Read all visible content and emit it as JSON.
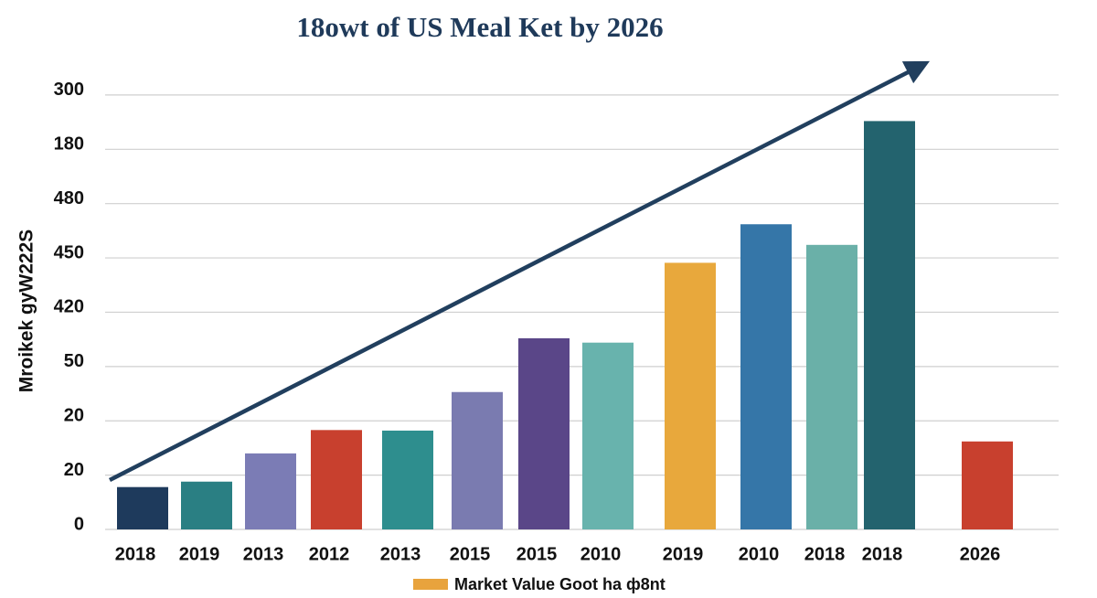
{
  "chart_data": {
    "type": "bar",
    "title": "18owt of US Meal Ket by 2026",
    "y_label": "Mroikek gyW222S",
    "categories": [
      "2018",
      "2019",
      "2013",
      "2012",
      "2013",
      "2015",
      "2015",
      "2010",
      "2019",
      "2010",
      "2018",
      "2018",
      "2026"
    ],
    "series": [
      {
        "name": "Market Value Goot ha ф8nt",
        "color": "#e8a33d",
        "values": [
          0.78,
          0.88,
          1.4,
          1.83,
          1.82,
          2.53,
          3.52,
          3.44,
          4.91,
          5.62,
          5.24,
          7.52,
          1.62
        ]
      }
    ],
    "bar_colors": [
      "#1e3a5c",
      "#2a7f83",
      "#7b7cb5",
      "#c8402e",
      "#2e8e8e",
      "#7a7bb0",
      "#5a4688",
      "#68b3ad",
      "#e8a83c",
      "#3576a8",
      "#6ab0a8",
      "#23636e",
      "#c8402e"
    ],
    "ylim": [
      0,
      8.15
    ],
    "yticks": [
      {
        "value": 0,
        "label": "0"
      },
      {
        "value": 1,
        "label": "20"
      },
      {
        "value": 2,
        "label": "20"
      },
      {
        "value": 3,
        "label": "50"
      },
      {
        "value": 4,
        "label": "420"
      },
      {
        "value": 5,
        "label": "450"
      },
      {
        "value": 6,
        "label": "480"
      },
      {
        "value": 7,
        "label": "180"
      },
      {
        "value": 8,
        "label": "300"
      }
    ],
    "grid": true
  }
}
